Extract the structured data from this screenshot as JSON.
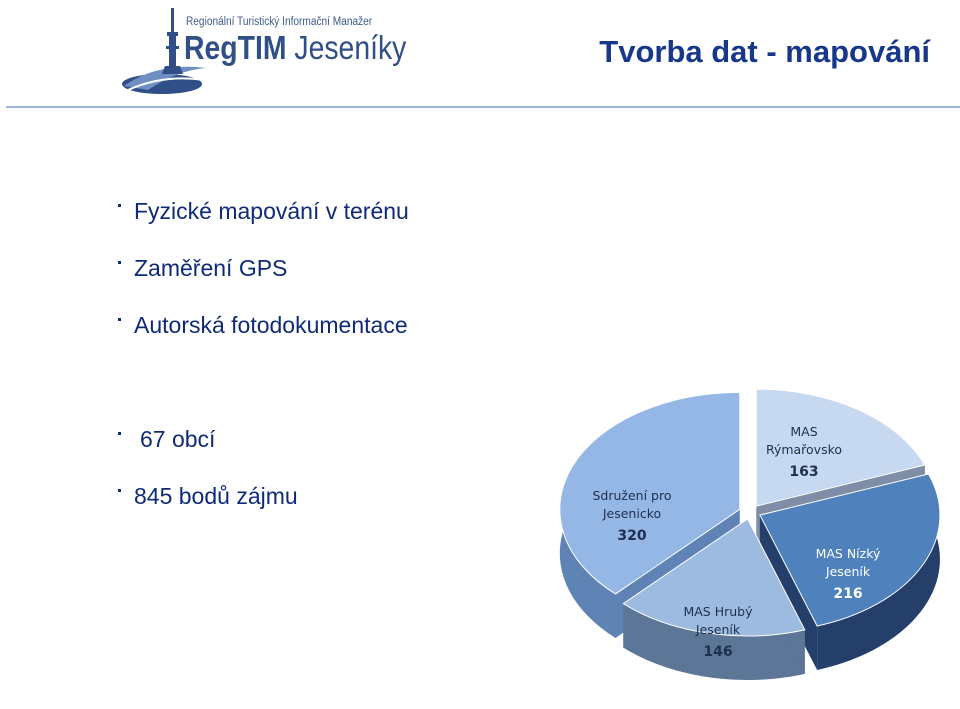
{
  "header": {
    "logo_tagline": "Regionální Turistický Informační Manažer",
    "logo_name_bold": "RegTIM",
    "logo_name_rest": " Jeseníky",
    "title": "Tvorba dat - mapování"
  },
  "bullets": [
    "Fyzické mapování v terénu",
    "Zaměření GPS",
    "Autorská fotodokumentace"
  ],
  "stats": [
    "67 obcí",
    "845 bodů zájmu"
  ],
  "colors": {
    "title": "#17378a",
    "text": "#0f2a78",
    "rule": "#9fb5d8"
  },
  "chart_data": {
    "type": "pie",
    "style": "3d-exploded",
    "slices": [
      {
        "label_lines": [
          "MAS",
          "Rýmařovsko"
        ],
        "value": 163,
        "color": "#c6d9f1",
        "side": "#7f8ea6"
      },
      {
        "label_lines": [
          "MAS Nízký",
          "Jeseník"
        ],
        "value": 216,
        "color": "#4f81bd",
        "side": "#233f6a"
      },
      {
        "label_lines": [
          "MAS Hrubý",
          "Jeseník"
        ],
        "value": 146,
        "color": "#9dbbe0",
        "side": "#5b7696"
      },
      {
        "label_lines": [
          "Sdružení pro",
          "Jesenicko"
        ],
        "value": 320,
        "color": "#95b7e6",
        "side": "#5f83b5"
      }
    ]
  }
}
